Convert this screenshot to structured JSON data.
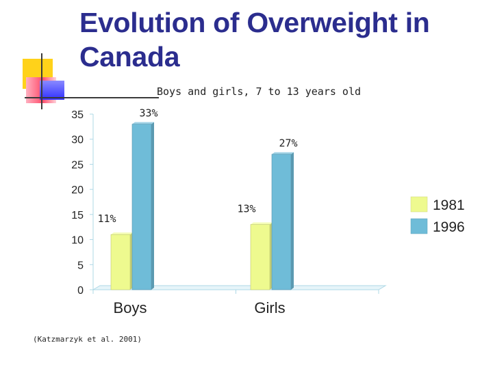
{
  "slide": {
    "title_pre": "Evolution of ",
    "title_bold": "Overweight",
    "title_post": " in Canada",
    "citation": "(Katzmarzyk et al. 2001)"
  },
  "colors": {
    "title": "#2b2d8e",
    "series_1981": "#eefa8f",
    "series_1996": "#6fbcd8",
    "axis": "#aed8e6"
  },
  "chart_data": {
    "type": "bar",
    "title": "Boys and girls, 7 to 13 years old",
    "categories": [
      "Boys",
      "Girls"
    ],
    "series": [
      {
        "name": "1981",
        "values": [
          11,
          13
        ],
        "labels": [
          "11%",
          "13%"
        ]
      },
      {
        "name": "1996",
        "values": [
          33,
          27
        ],
        "labels": [
          "33%",
          "27%"
        ]
      }
    ],
    "ylim": [
      0,
      35
    ],
    "yticks": [
      0,
      5,
      10,
      15,
      20,
      25,
      30,
      35
    ],
    "xlabel": "",
    "ylabel": "",
    "legend_position": "right"
  }
}
